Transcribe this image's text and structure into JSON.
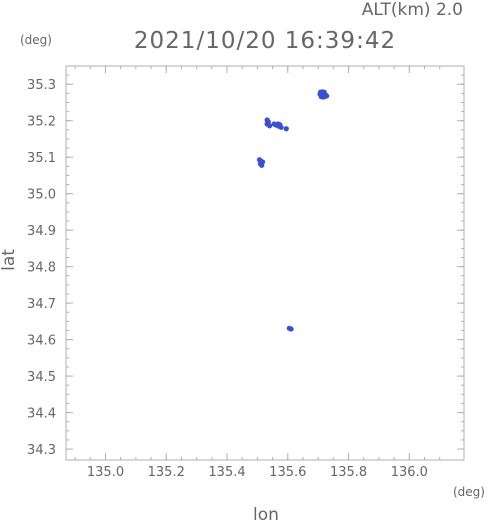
{
  "chart_data": {
    "type": "scatter",
    "title": "2021/10/20 16:39:42",
    "subtitle": "ALT(km) 2.0",
    "xlabel": "lon",
    "ylabel": "lat",
    "xunit": "(deg)",
    "yunit": "(deg)",
    "xlim": [
      134.87,
      136.18
    ],
    "ylim": [
      34.27,
      35.35
    ],
    "xticks": [
      135.0,
      135.2,
      135.4,
      135.6,
      135.8,
      136.0
    ],
    "xtick_labels": [
      "135.0",
      "135.2",
      "135.4",
      "135.6",
      "135.8",
      "136.0"
    ],
    "yticks": [
      34.3,
      34.4,
      34.5,
      34.6,
      34.7,
      34.8,
      34.9,
      35.0,
      35.1,
      35.2,
      35.3
    ],
    "ytick_labels": [
      "34.3",
      "34.4",
      "34.5",
      "34.6",
      "34.7",
      "34.8",
      "34.9",
      "35.0",
      "35.1",
      "35.2",
      "35.3"
    ],
    "grid": false,
    "marker_color": "#3a4fd8",
    "axis_color": "#b0b0b0",
    "text_color": "#666666",
    "points": [
      {
        "x": 135.708,
        "y": 35.278
      },
      {
        "x": 135.714,
        "y": 35.279
      },
      {
        "x": 135.72,
        "y": 35.278
      },
      {
        "x": 135.706,
        "y": 35.273
      },
      {
        "x": 135.712,
        "y": 35.272
      },
      {
        "x": 135.718,
        "y": 35.272
      },
      {
        "x": 135.724,
        "y": 35.271
      },
      {
        "x": 135.71,
        "y": 35.266
      },
      {
        "x": 135.716,
        "y": 35.265
      },
      {
        "x": 135.722,
        "y": 35.266
      },
      {
        "x": 135.728,
        "y": 35.268
      },
      {
        "x": 135.532,
        "y": 35.202
      },
      {
        "x": 135.536,
        "y": 35.197
      },
      {
        "x": 135.532,
        "y": 35.191
      },
      {
        "x": 135.54,
        "y": 35.186
      },
      {
        "x": 135.555,
        "y": 35.191
      },
      {
        "x": 135.562,
        "y": 35.188
      },
      {
        "x": 135.568,
        "y": 35.191
      },
      {
        "x": 135.57,
        "y": 35.185
      },
      {
        "x": 135.574,
        "y": 35.189
      },
      {
        "x": 135.578,
        "y": 35.182
      },
      {
        "x": 135.595,
        "y": 35.178
      },
      {
        "x": 135.507,
        "y": 35.093
      },
      {
        "x": 135.512,
        "y": 35.089
      },
      {
        "x": 135.517,
        "y": 35.087
      },
      {
        "x": 135.51,
        "y": 35.082
      },
      {
        "x": 135.514,
        "y": 35.078
      },
      {
        "x": 135.605,
        "y": 34.631
      },
      {
        "x": 135.611,
        "y": 34.629
      }
    ]
  }
}
